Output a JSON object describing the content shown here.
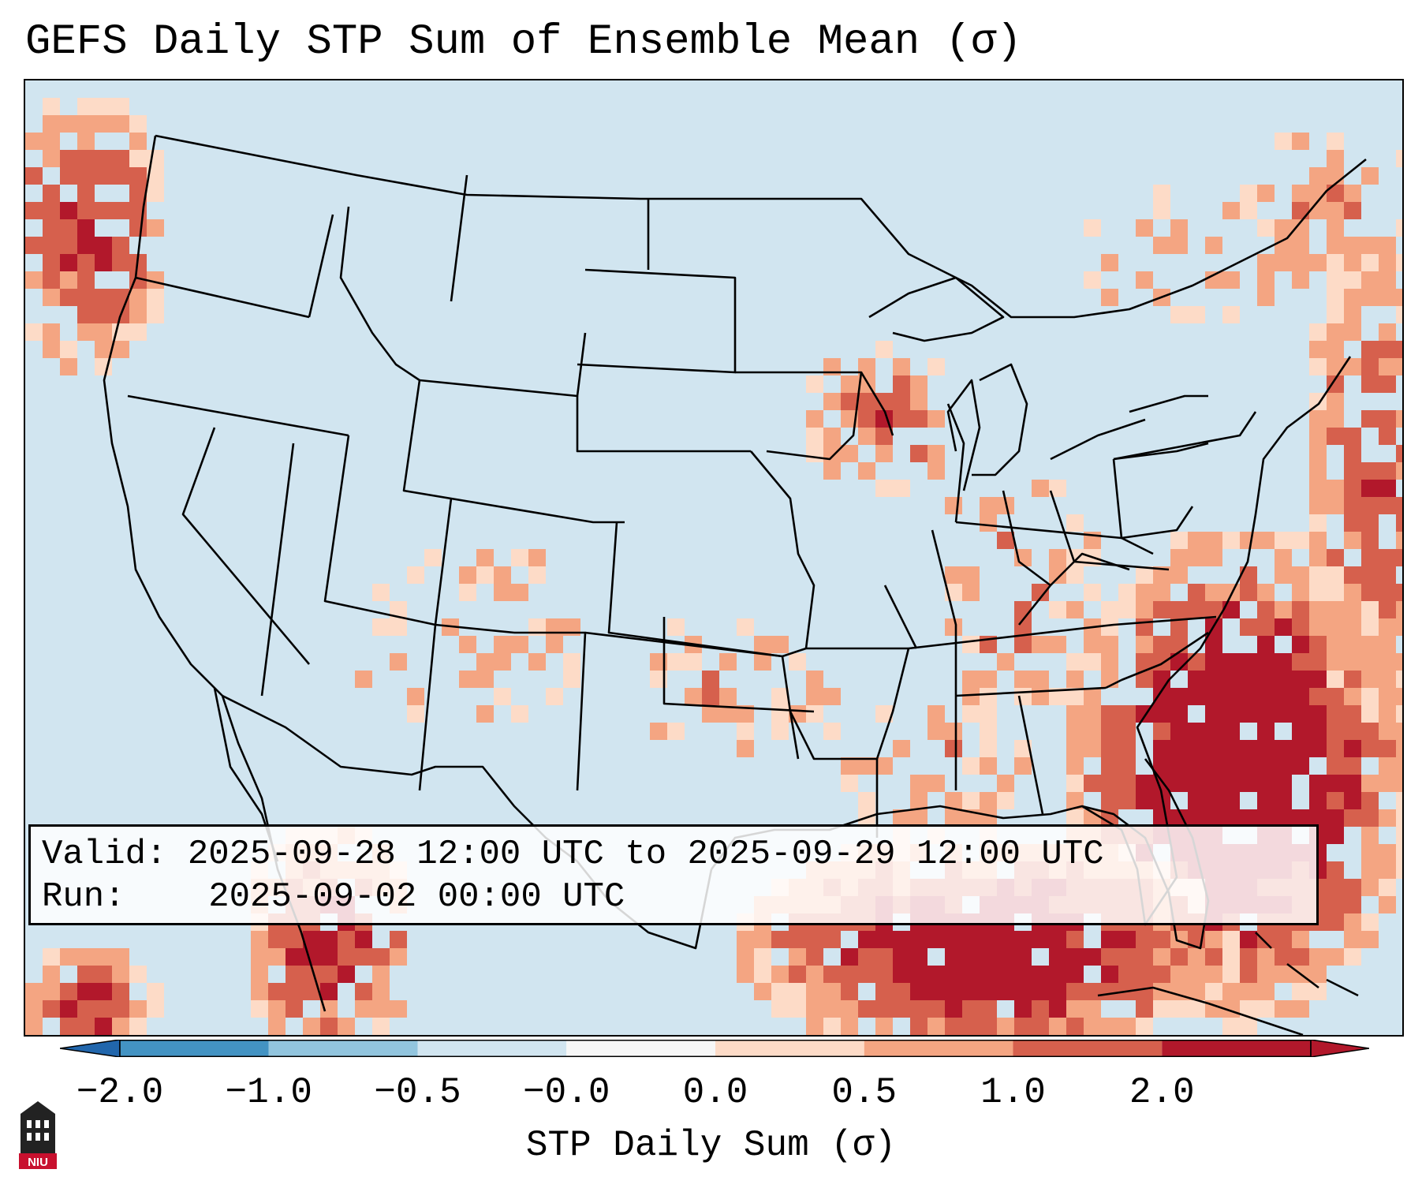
{
  "title": "GEFS Daily STP Sum of Ensemble Mean (σ)",
  "info": {
    "valid_label": "Valid:",
    "valid_value": "2025-09-28 12:00 UTC to 2025-09-29 12:00 UTC",
    "run_label": "Run:",
    "run_value": "2025-09-02 00:00 UTC"
  },
  "colorbar": {
    "ticks": [
      "−2.0",
      "−1.0",
      "−0.5",
      "−0.0",
      "0.0",
      "0.5",
      "1.0",
      "2.0"
    ],
    "colors": [
      "#4393c3",
      "#92c5de",
      "#d1e5f0",
      "#f7f7f7",
      "#fddbc7",
      "#f4a582",
      "#d6604d",
      "#b2182b"
    ],
    "extend_min_color": "#2166ac",
    "extend_max_color": "#b2182b",
    "label": "STP Daily Sum (σ)"
  },
  "map": {
    "ocean_color": "#d1e5f0",
    "land_color": "#d1e5f0",
    "border_color": "#000000"
  },
  "logo": {
    "text": "NIU",
    "icon": "niu-logo-icon"
  }
}
